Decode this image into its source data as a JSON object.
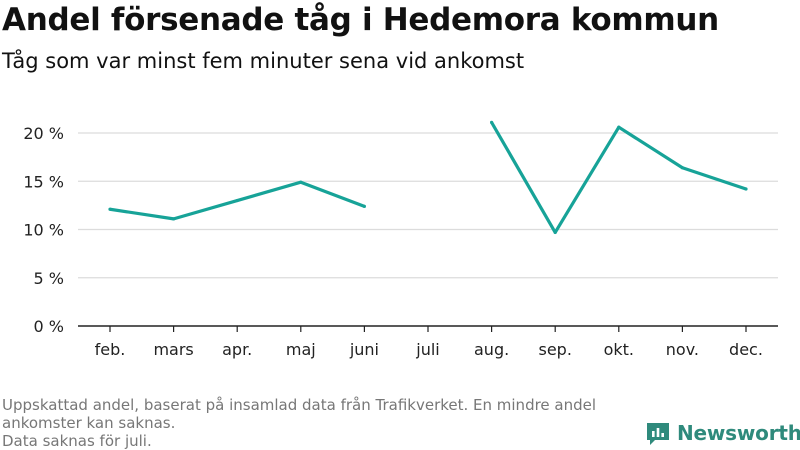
{
  "title": "Andel försenade tåg i Hedemora kommun",
  "subtitle": "Tåg som var minst fem minuter sena vid ankomst",
  "footer": {
    "note1": "Uppskattad andel, baserat på insamlad data från Trafikverket. En mindre andel ankomster kan saknas.",
    "note2": "Data saknas för juli."
  },
  "brand": {
    "name": "Newsworthy",
    "color": "#2f8a7c",
    "icon": "newsworthy-logo-icon"
  },
  "chart_data": {
    "type": "line",
    "categories": [
      "feb.",
      "mars",
      "apr.",
      "maj",
      "juni",
      "juli",
      "aug.",
      "sep.",
      "okt.",
      "nov.",
      "dec."
    ],
    "values": [
      12.1,
      11.1,
      13.0,
      14.9,
      12.4,
      null,
      21.1,
      9.7,
      20.6,
      16.4,
      14.2
    ],
    "ylim": [
      0,
      20
    ],
    "yticks": [
      0,
      5,
      10,
      15,
      20
    ],
    "ytick_labels": [
      "0 %",
      "5 %",
      "10 %",
      "15 %",
      "20 %"
    ],
    "line_color": "#17a398",
    "grid": true,
    "legend": "none"
  }
}
